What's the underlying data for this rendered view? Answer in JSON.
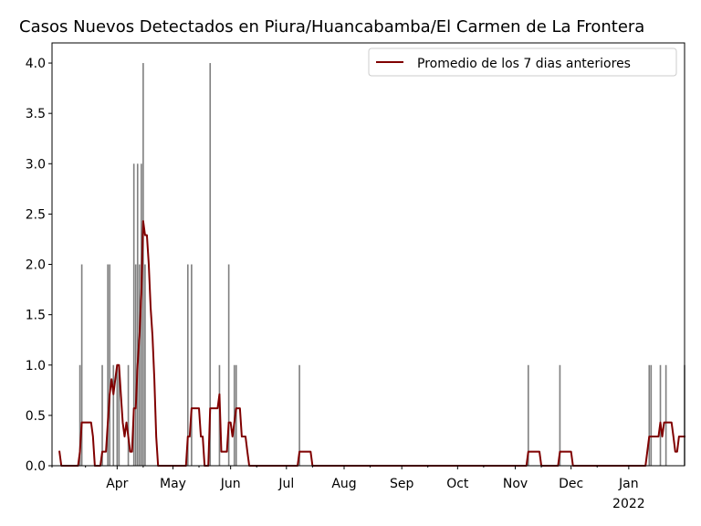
{
  "chart_data": {
    "type": "bar",
    "title": "Casos Nuevos Detectados en Piura/Huancabamba/El Carmen de La Frontera",
    "xlabel": "",
    "ylabel": "",
    "ylim": [
      0,
      4.2
    ],
    "xlim": [
      "2021-02-25",
      "2022-01-31"
    ],
    "yticks": [
      "0.0",
      "0.5",
      "1.0",
      "1.5",
      "2.0",
      "2.5",
      "3.0",
      "3.5",
      "4.0"
    ],
    "xticks": [
      {
        "date": "2021-04-01",
        "label": "Apr",
        "sublabel": ""
      },
      {
        "date": "2021-05-01",
        "label": "May",
        "sublabel": ""
      },
      {
        "date": "2021-06-01",
        "label": "Jun",
        "sublabel": ""
      },
      {
        "date": "2021-07-01",
        "label": "Jul",
        "sublabel": ""
      },
      {
        "date": "2021-08-01",
        "label": "Aug",
        "sublabel": ""
      },
      {
        "date": "2021-09-01",
        "label": "Sep",
        "sublabel": ""
      },
      {
        "date": "2021-10-01",
        "label": "Oct",
        "sublabel": ""
      },
      {
        "date": "2021-11-01",
        "label": "Nov",
        "sublabel": ""
      },
      {
        "date": "2021-12-01",
        "label": "Dec",
        "sublabel": ""
      },
      {
        "date": "2022-01-01",
        "label": "Jan",
        "sublabel": "2022"
      }
    ],
    "bar_color": "#808080",
    "line_color": "#800000",
    "legend": {
      "position": "upper right",
      "entries": [
        "Promedio de los 7 dias anteriores"
      ]
    },
    "series": [
      {
        "type": "bar",
        "name": "",
        "points": [
          [
            "2021-03-12",
            1
          ],
          [
            "2021-03-13",
            2
          ],
          [
            "2021-03-24",
            1
          ],
          [
            "2021-03-27",
            2
          ],
          [
            "2021-03-28",
            2
          ],
          [
            "2021-03-30",
            1
          ],
          [
            "2021-04-01",
            1
          ],
          [
            "2021-04-02",
            1
          ],
          [
            "2021-04-07",
            1
          ],
          [
            "2021-04-10",
            3
          ],
          [
            "2021-04-11",
            2
          ],
          [
            "2021-04-12",
            3
          ],
          [
            "2021-04-13",
            2
          ],
          [
            "2021-04-14",
            3
          ],
          [
            "2021-04-15",
            4
          ],
          [
            "2021-04-16",
            2
          ],
          [
            "2021-05-09",
            2
          ],
          [
            "2021-05-11",
            2
          ],
          [
            "2021-05-21",
            4
          ],
          [
            "2021-05-26",
            1
          ],
          [
            "2021-05-31",
            2
          ],
          [
            "2021-06-03",
            1
          ],
          [
            "2021-06-04",
            1
          ],
          [
            "2021-07-08",
            1
          ],
          [
            "2021-11-08",
            1
          ],
          [
            "2021-11-25",
            1
          ],
          [
            "2022-01-12",
            1
          ],
          [
            "2022-01-13",
            1
          ],
          [
            "2022-01-18",
            1
          ],
          [
            "2022-01-21",
            1
          ],
          [
            "2022-01-31",
            1
          ]
        ]
      },
      {
        "type": "line",
        "name": "Promedio de los 7 dias anteriores",
        "points": [
          [
            "2021-03-01",
            0.14
          ],
          [
            "2021-03-02",
            0
          ],
          [
            "2021-03-11",
            0
          ],
          [
            "2021-03-12",
            0.14
          ],
          [
            "2021-03-13",
            0.43
          ],
          [
            "2021-03-18",
            0.43
          ],
          [
            "2021-03-19",
            0.29
          ],
          [
            "2021-03-20",
            0
          ],
          [
            "2021-03-23",
            0
          ],
          [
            "2021-03-24",
            0.14
          ],
          [
            "2021-03-26",
            0.14
          ],
          [
            "2021-03-27",
            0.43
          ],
          [
            "2021-03-28",
            0.71
          ],
          [
            "2021-03-29",
            0.86
          ],
          [
            "2021-03-30",
            0.71
          ],
          [
            "2021-03-31",
            0.86
          ],
          [
            "2021-04-01",
            1.0
          ],
          [
            "2021-04-02",
            1.0
          ],
          [
            "2021-04-03",
            0.71
          ],
          [
            "2021-04-04",
            0.43
          ],
          [
            "2021-04-05",
            0.29
          ],
          [
            "2021-04-06",
            0.43
          ],
          [
            "2021-04-07",
            0.29
          ],
          [
            "2021-04-08",
            0.14
          ],
          [
            "2021-04-09",
            0.14
          ],
          [
            "2021-04-10",
            0.57
          ],
          [
            "2021-04-11",
            0.57
          ],
          [
            "2021-04-12",
            1.0
          ],
          [
            "2021-04-13",
            1.29
          ],
          [
            "2021-04-14",
            1.71
          ],
          [
            "2021-04-15",
            2.43
          ],
          [
            "2021-04-16",
            2.29
          ],
          [
            "2021-04-17",
            2.29
          ],
          [
            "2021-04-18",
            2.0
          ],
          [
            "2021-04-19",
            1.57
          ],
          [
            "2021-04-20",
            1.29
          ],
          [
            "2021-04-21",
            0.86
          ],
          [
            "2021-04-22",
            0.29
          ],
          [
            "2021-04-23",
            0
          ],
          [
            "2021-05-08",
            0
          ],
          [
            "2021-05-09",
            0.29
          ],
          [
            "2021-05-10",
            0.29
          ],
          [
            "2021-05-11",
            0.57
          ],
          [
            "2021-05-15",
            0.57
          ],
          [
            "2021-05-16",
            0.29
          ],
          [
            "2021-05-17",
            0.29
          ],
          [
            "2021-05-18",
            0
          ],
          [
            "2021-05-20",
            0
          ],
          [
            "2021-05-21",
            0.57
          ],
          [
            "2021-05-25",
            0.57
          ],
          [
            "2021-05-26",
            0.71
          ],
          [
            "2021-05-27",
            0.14
          ],
          [
            "2021-05-30",
            0.14
          ],
          [
            "2021-05-31",
            0.43
          ],
          [
            "2021-06-01",
            0.43
          ],
          [
            "2021-06-02",
            0.29
          ],
          [
            "2021-06-03",
            0.43
          ],
          [
            "2021-06-04",
            0.57
          ],
          [
            "2021-06-06",
            0.57
          ],
          [
            "2021-06-07",
            0.29
          ],
          [
            "2021-06-09",
            0.29
          ],
          [
            "2021-06-10",
            0.14
          ],
          [
            "2021-06-11",
            0
          ],
          [
            "2021-07-07",
            0
          ],
          [
            "2021-07-08",
            0.14
          ],
          [
            "2021-07-14",
            0.14
          ],
          [
            "2021-07-15",
            0
          ],
          [
            "2021-11-07",
            0
          ],
          [
            "2021-11-08",
            0.14
          ],
          [
            "2021-11-14",
            0.14
          ],
          [
            "2021-11-15",
            0
          ],
          [
            "2021-11-24",
            0
          ],
          [
            "2021-11-25",
            0.14
          ],
          [
            "2021-12-01",
            0.14
          ],
          [
            "2021-12-02",
            0
          ],
          [
            "2022-01-10",
            0
          ],
          [
            "2022-01-12",
            0.29
          ],
          [
            "2022-01-13",
            0.29
          ],
          [
            "2022-01-17",
            0.29
          ],
          [
            "2022-01-18",
            0.43
          ],
          [
            "2022-01-19",
            0.29
          ],
          [
            "2022-01-20",
            0.43
          ],
          [
            "2022-01-24",
            0.43
          ],
          [
            "2022-01-25",
            0.29
          ],
          [
            "2022-01-26",
            0.14
          ],
          [
            "2022-01-27",
            0.14
          ],
          [
            "2022-01-28",
            0.29
          ],
          [
            "2022-01-31",
            0.29
          ]
        ]
      }
    ]
  }
}
